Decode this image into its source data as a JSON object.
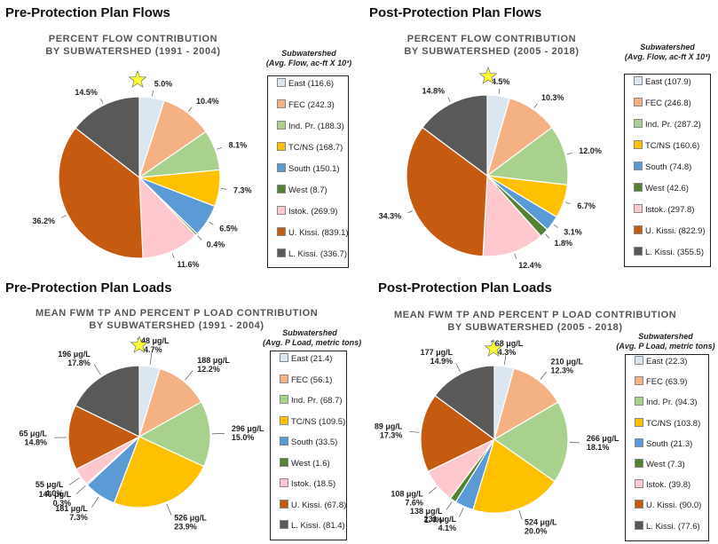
{
  "colors": [
    "#dce6f1",
    "#f4b183",
    "#a9d18e",
    "#ffc000",
    "#5b9bd5",
    "#548235",
    "#ffc7ce",
    "#c55a11",
    "#595959"
  ],
  "chart_data": [
    {
      "type": "pie",
      "panel_title": "Pre-Protection Plan Flows",
      "title_lines": [
        "PERCENT FLOW CONTRIBUTION",
        "BY SUBWATERSHED (1991 - 2004)"
      ],
      "legend_title_lines": [
        "Subwatershed",
        "(Avg. Flow, ac-ft X 10³)"
      ],
      "categories": [
        "East",
        "FEC",
        "Ind. Pr.",
        "TC/NS",
        "South",
        "West",
        "Istok.",
        "U. Kissi.",
        "L. Kissi."
      ],
      "legend_values": [
        "116.6",
        "242.3",
        "188.3",
        "168.7",
        "150.1",
        "8.7",
        "269.9",
        "839.1",
        "336.7"
      ],
      "values": [
        5.0,
        10.4,
        8.1,
        7.3,
        6.5,
        0.4,
        11.6,
        36.2,
        14.5
      ],
      "labels": [
        [
          "5.0%"
        ],
        [
          "10.4%"
        ],
        [
          "8.1%"
        ],
        [
          "7.3%"
        ],
        [
          "6.5%"
        ],
        [
          "0.4%"
        ],
        [
          "11.6%"
        ],
        [
          "36.2%"
        ],
        [
          "14.5%"
        ]
      ],
      "star_on": "East"
    },
    {
      "type": "pie",
      "panel_title": "Post-Protection Plan Flows",
      "title_lines": [
        "PERCENT FLOW CONTRIBUTION",
        "BY SUBWATERSHED (2005 - 2018)"
      ],
      "legend_title_lines": [
        "Subwatershed",
        "(Avg. Flow, ac-ft X 10³)"
      ],
      "categories": [
        "East",
        "FEC",
        "Ind. Pr.",
        "TC/NS",
        "South",
        "West",
        "Istok.",
        "U. Kissi.",
        "L. Kissi."
      ],
      "legend_values": [
        "107.9",
        "246.8",
        "287.2",
        "160.6",
        "74.8",
        "42.6",
        "297.8",
        "822.9",
        "355.5"
      ],
      "values": [
        4.5,
        10.3,
        12.0,
        6.7,
        3.1,
        1.8,
        12.4,
        34.3,
        14.8
      ],
      "labels": [
        [
          "4.5%"
        ],
        [
          "10.3%"
        ],
        [
          "12.0%"
        ],
        [
          "6.7%"
        ],
        [
          "3.1%"
        ],
        [
          "1.8%"
        ],
        [
          "12.4%"
        ],
        [
          "34.3%"
        ],
        [
          "14.8%"
        ]
      ],
      "star_on": "East"
    },
    {
      "type": "pie",
      "panel_title": "Pre-Protection Plan Loads",
      "title_lines": [
        "MEAN FWM TP AND PERCENT P LOAD CONTRIBUTION",
        "BY SUBWATERSHED (1991 - 2004)"
      ],
      "legend_title_lines": [
        "Subwatershed",
        "(Avg. P Load, metric tons)"
      ],
      "categories": [
        "East",
        "FEC",
        "Ind. Pr.",
        "TC/NS",
        "South",
        "West",
        "Istok.",
        "U. Kissi.",
        "L. Kissi."
      ],
      "legend_values": [
        "21.4",
        "56.1",
        "68.7",
        "109.5",
        "33.5",
        "1.6",
        "18.5",
        "67.8",
        "81.4"
      ],
      "values": [
        4.7,
        12.2,
        15.0,
        23.9,
        7.3,
        0.3,
        4.0,
        14.8,
        17.8
      ],
      "fwm_tp_ug_per_l": [
        148,
        188,
        296,
        526,
        181,
        146,
        55,
        65,
        196
      ],
      "labels": [
        [
          "148 μg/L",
          "4.7%"
        ],
        [
          "188 μg/L",
          "12.2%"
        ],
        [
          "296 μg/L",
          "15.0%"
        ],
        [
          "526 μg/L",
          "23.9%"
        ],
        [
          "181 μg/L",
          "7.3%"
        ],
        [
          "146 μg/L",
          "0.3%"
        ],
        [
          "55 μg/L",
          "4.0%"
        ],
        [
          "65 μg/L",
          "14.8%"
        ],
        [
          "196 μg/L",
          "17.8%"
        ]
      ],
      "star_on": "East"
    },
    {
      "type": "pie",
      "panel_title": "Post-Protection Plan Loads",
      "title_lines": [
        "MEAN FWM TP AND PERCENT P LOAD CONTRIBUTION",
        "BY SUBWATERSHED (2005 - 2018)"
      ],
      "legend_title_lines": [
        "Subwatershed",
        "(Avg. P Load, metric tons)"
      ],
      "categories": [
        "East",
        "FEC",
        "Ind. Pr.",
        "TC/NS",
        "South",
        "West",
        "Istok.",
        "U. Kissi.",
        "L. Kissi."
      ],
      "legend_values": [
        "22.3",
        "63.9",
        "94.3",
        "103.8",
        "21.3",
        "7.3",
        "39.8",
        "90.0",
        "77.6"
      ],
      "values": [
        4.3,
        12.3,
        18.1,
        20.0,
        4.1,
        1.4,
        7.6,
        17.3,
        14.9
      ],
      "fwm_tp_ug_per_l": [
        168,
        210,
        266,
        524,
        231,
        138,
        108,
        89,
        177
      ],
      "labels": [
        [
          "168 μg/L",
          "4.3%"
        ],
        [
          "210 μg/L",
          "12.3%"
        ],
        [
          "266 μg/L",
          "18.1%"
        ],
        [
          "524 μg/L",
          "20.0%"
        ],
        [
          "231 μg/L",
          "4.1%"
        ],
        [
          "138 μg/L",
          "1.4%"
        ],
        [
          "108 μg/L",
          "7.6%"
        ],
        [
          "89 μg/L",
          "17.3%"
        ],
        [
          "177 μg/L",
          "14.9%"
        ]
      ],
      "star_on": "East"
    }
  ]
}
